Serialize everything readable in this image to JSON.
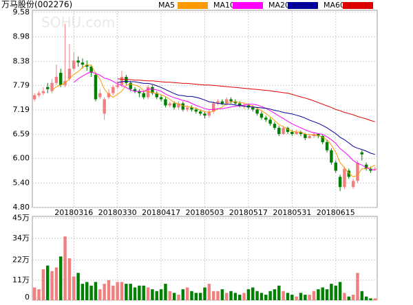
{
  "chart_data": {
    "type": "candlestick",
    "title": "万马股份(002276)",
    "watermark": "SOHU.com",
    "categories": [
      null,
      null,
      null,
      null,
      null,
      null,
      null,
      null,
      null,
      "20180316",
      null,
      null,
      null,
      null,
      null,
      null,
      null,
      null,
      null,
      "20180330",
      null,
      null,
      null,
      null,
      null,
      null,
      null,
      null,
      null,
      "20180417",
      null,
      null,
      null,
      null,
      null,
      null,
      null,
      null,
      null,
      "20180503",
      null,
      null,
      null,
      null,
      null,
      null,
      null,
      null,
      null,
      "20180517",
      null,
      null,
      null,
      null,
      null,
      null,
      null,
      null,
      null,
      "20180531",
      null,
      null,
      null,
      null,
      null,
      null,
      null,
      null,
      null,
      "20180615",
      null,
      null,
      null,
      null,
      null,
      null,
      null,
      null,
      null
    ],
    "open": [
      7.45,
      7.55,
      7.6,
      7.75,
      7.65,
      7.85,
      8.1,
      7.8,
      7.95,
      8.2,
      8.4,
      8.35,
      8.3,
      8.25,
      8.05,
      7.5,
      7.1,
      7.5,
      7.6,
      7.75,
      7.8,
      8.0,
      7.85,
      7.7,
      7.65,
      7.6,
      7.5,
      7.75,
      7.6,
      7.5,
      7.45,
      7.3,
      7.35,
      7.25,
      7.35,
      7.2,
      7.25,
      7.2,
      7.15,
      7.1,
      7.05,
      7.15,
      7.35,
      7.4,
      7.35,
      7.45,
      7.4,
      7.35,
      7.28,
      7.3,
      7.25,
      7.2,
      7.1,
      7.0,
      6.95,
      6.85,
      6.75,
      6.6,
      6.75,
      6.65,
      6.6,
      6.65,
      6.6,
      6.5,
      6.55,
      6.6,
      6.55,
      6.4,
      6.2,
      5.9,
      5.55,
      5.3,
      5.7,
      5.3,
      5.45,
      6.15,
      5.85,
      5.75,
      5.72
    ],
    "high": [
      7.6,
      7.65,
      7.75,
      7.85,
      7.95,
      8.3,
      8.2,
      9.3,
      8.8,
      8.6,
      8.5,
      8.45,
      8.4,
      8.3,
      8.1,
      7.7,
      7.5,
      7.7,
      7.8,
      7.9,
      8.15,
      8.05,
      7.9,
      7.75,
      7.7,
      7.65,
      7.8,
      7.8,
      7.65,
      7.55,
      7.5,
      7.4,
      7.4,
      7.4,
      7.4,
      7.3,
      7.3,
      7.25,
      7.2,
      7.15,
      7.2,
      7.4,
      7.45,
      7.45,
      7.5,
      7.5,
      7.45,
      7.4,
      7.35,
      7.35,
      7.3,
      7.25,
      7.15,
      7.05,
      7.0,
      6.9,
      6.8,
      6.8,
      6.78,
      6.7,
      6.7,
      6.68,
      6.62,
      6.6,
      6.65,
      6.62,
      6.58,
      6.45,
      6.25,
      5.95,
      5.6,
      5.8,
      5.75,
      5.5,
      5.95,
      6.2,
      5.9,
      5.8,
      5.8
    ],
    "low": [
      7.4,
      7.5,
      7.55,
      7.6,
      7.6,
      7.8,
      7.75,
      7.75,
      7.9,
      8.15,
      8.25,
      8.2,
      8.15,
      8.0,
      7.4,
      7.45,
      6.95,
      7.45,
      7.55,
      7.7,
      7.75,
      7.8,
      7.65,
      7.6,
      7.5,
      7.45,
      7.45,
      7.55,
      7.45,
      7.4,
      7.25,
      7.25,
      7.2,
      7.2,
      7.15,
      7.15,
      7.15,
      7.1,
      7.05,
      6.98,
      7.0,
      7.1,
      7.3,
      7.3,
      7.3,
      7.35,
      7.3,
      7.25,
      7.22,
      7.2,
      7.15,
      7.05,
      6.95,
      6.9,
      6.8,
      6.7,
      6.55,
      6.58,
      6.6,
      6.55,
      6.58,
      6.55,
      6.45,
      6.48,
      6.5,
      6.5,
      6.35,
      6.15,
      5.85,
      5.65,
      5.2,
      5.25,
      5.5,
      5.25,
      5.4,
      5.95,
      5.7,
      5.65,
      5.7
    ],
    "close": [
      7.55,
      7.6,
      7.65,
      7.7,
      7.85,
      8.0,
      7.8,
      7.9,
      8.2,
      8.4,
      8.35,
      8.3,
      8.25,
      8.1,
      7.45,
      7.6,
      7.45,
      7.6,
      7.75,
      7.8,
      8.0,
      7.85,
      7.7,
      7.65,
      7.6,
      7.5,
      7.75,
      7.6,
      7.5,
      7.45,
      7.3,
      7.35,
      7.25,
      7.35,
      7.2,
      7.25,
      7.2,
      7.15,
      7.1,
      7.05,
      7.15,
      7.35,
      7.4,
      7.35,
      7.45,
      7.4,
      7.35,
      7.3,
      7.3,
      7.25,
      7.2,
      7.1,
      7.0,
      6.95,
      6.85,
      6.75,
      6.6,
      6.75,
      6.65,
      6.6,
      6.65,
      6.6,
      6.5,
      6.55,
      6.6,
      6.55,
      6.4,
      6.2,
      5.9,
      5.7,
      5.3,
      5.75,
      5.55,
      5.45,
      5.9,
      6.1,
      5.75,
      5.7,
      5.75
    ],
    "up_color": "#f08080",
    "down_color": "#008000",
    "ylim": [
      4.8,
      9.58
    ],
    "yticks": [
      9.58,
      8.98,
      8.38,
      7.79,
      7.19,
      6.59,
      {
        "value": 6,
        "label": "6.00"
      },
      {
        "value": 5.4,
        "label": "5.40"
      },
      {
        "value": 4.8,
        "label": "4.80"
      }
    ],
    "grid": true,
    "series": [
      {
        "name": "MA5",
        "color": "#ff9900",
        "values": [
          null,
          null,
          null,
          null,
          7.67,
          7.76,
          7.8,
          7.85,
          7.95,
          8.06,
          8.13,
          8.23,
          8.3,
          8.28,
          8.09,
          7.94,
          7.7,
          7.57,
          7.5,
          7.57,
          7.65,
          7.8,
          7.82,
          7.8,
          7.76,
          7.66,
          7.64,
          7.62,
          7.59,
          7.56,
          7.52,
          7.45,
          7.37,
          7.34,
          7.29,
          7.28,
          7.25,
          7.23,
          7.18,
          7.15,
          7.13,
          7.16,
          7.21,
          7.26,
          7.34,
          7.39,
          7.39,
          7.37,
          7.36,
          7.32,
          7.28,
          7.23,
          7.17,
          7.1,
          7.02,
          6.93,
          6.83,
          6.78,
          6.72,
          6.67,
          6.65,
          6.65,
          6.6,
          6.58,
          6.58,
          6.56,
          6.52,
          6.46,
          6.33,
          6.15,
          5.9,
          5.77,
          5.64,
          5.55,
          5.59,
          5.75,
          5.75,
          5.78,
          5.84
        ]
      },
      {
        "name": "MA10",
        "color": "#ff00ff",
        "values": [
          null,
          null,
          null,
          null,
          null,
          null,
          null,
          null,
          null,
          7.87,
          7.95,
          8.02,
          8.08,
          8.12,
          8.08,
          8.04,
          7.97,
          7.94,
          7.89,
          7.83,
          7.79,
          7.74,
          7.68,
          7.64,
          7.65,
          7.64,
          7.7,
          7.7,
          7.68,
          7.65,
          7.58,
          7.53,
          7.49,
          7.46,
          7.42,
          7.4,
          7.35,
          7.3,
          7.26,
          7.22,
          7.2,
          7.2,
          7.22,
          7.22,
          7.24,
          7.26,
          7.28,
          7.29,
          7.31,
          7.33,
          7.33,
          7.31,
          7.27,
          7.23,
          7.17,
          7.11,
          7.04,
          6.98,
          6.91,
          6.85,
          6.8,
          6.75,
          6.7,
          6.66,
          6.63,
          6.61,
          6.59,
          6.53,
          6.46,
          6.37,
          6.24,
          6.16,
          6.06,
          5.95,
          5.88,
          5.84,
          5.78,
          5.73,
          5.71
        ]
      },
      {
        "name": "MA20",
        "color": "#000099",
        "values": [
          null,
          null,
          null,
          null,
          null,
          null,
          null,
          null,
          null,
          null,
          null,
          null,
          null,
          null,
          null,
          null,
          null,
          null,
          null,
          7.86,
          7.88,
          7.89,
          7.88,
          7.88,
          7.86,
          7.84,
          7.84,
          7.82,
          7.78,
          7.74,
          7.69,
          7.64,
          7.59,
          7.55,
          7.54,
          7.52,
          7.52,
          7.5,
          7.47,
          7.43,
          7.39,
          7.37,
          7.35,
          7.34,
          7.33,
          7.33,
          7.31,
          7.3,
          7.28,
          7.27,
          7.26,
          7.25,
          7.24,
          7.23,
          7.21,
          7.18,
          7.16,
          7.13,
          7.11,
          7.09,
          7.06,
          7.03,
          6.99,
          6.94,
          6.9,
          6.86,
          6.81,
          6.75,
          6.68,
          6.61,
          6.52,
          6.46,
          6.38,
          6.3,
          6.25,
          6.22,
          6.18,
          6.13,
          6.1
        ]
      },
      {
        "name": "MA60",
        "color": "#dd0000",
        "values": [
          null,
          null,
          null,
          null,
          null,
          null,
          null,
          null,
          null,
          null,
          null,
          null,
          null,
          null,
          null,
          null,
          null,
          null,
          null,
          7.95,
          7.94,
          7.94,
          7.93,
          7.92,
          7.92,
          7.91,
          7.9,
          7.9,
          7.89,
          7.88,
          7.87,
          7.87,
          7.86,
          7.85,
          7.84,
          7.84,
          7.83,
          7.82,
          7.81,
          7.8,
          7.8,
          7.79,
          7.78,
          7.77,
          7.76,
          7.75,
          7.74,
          7.73,
          7.72,
          7.71,
          7.7,
          7.69,
          7.68,
          7.67,
          7.66,
          7.64,
          7.63,
          7.61,
          7.6,
          7.57,
          7.54,
          7.51,
          7.48,
          7.45,
          7.41,
          7.37,
          7.33,
          7.29,
          7.25,
          7.2,
          7.17,
          7.13,
          7.1,
          7.07,
          7.03,
          7.0,
          6.97,
          6.93,
          6.9
        ]
      }
    ],
    "volume": {
      "values": [
        7,
        6,
        17,
        19,
        16,
        18,
        24,
        35,
        23,
        13,
        15,
        9,
        10,
        8,
        10,
        6,
        9,
        11,
        8,
        10,
        10,
        9,
        9,
        7,
        8,
        8,
        7,
        6,
        5,
        6,
        9,
        5,
        4,
        3,
        6,
        7,
        5,
        4,
        4,
        7,
        9,
        5,
        5,
        6,
        4,
        5,
        4,
        3,
        4,
        6,
        7,
        5,
        4,
        3,
        5,
        6,
        8,
        5,
        4,
        3,
        2,
        4,
        3,
        3,
        5,
        6,
        7,
        6,
        9,
        8,
        10,
        4,
        2,
        3,
        15,
        5,
        2,
        1,
        1
      ],
      "ylim": [
        0,
        46
      ],
      "yticks": [
        {
          "value": 45,
          "label": "45万"
        },
        {
          "value": 34,
          "label": "34万"
        },
        {
          "value": 22,
          "label": "22万"
        },
        {
          "value": 11,
          "label": "11万"
        },
        0
      ]
    }
  }
}
